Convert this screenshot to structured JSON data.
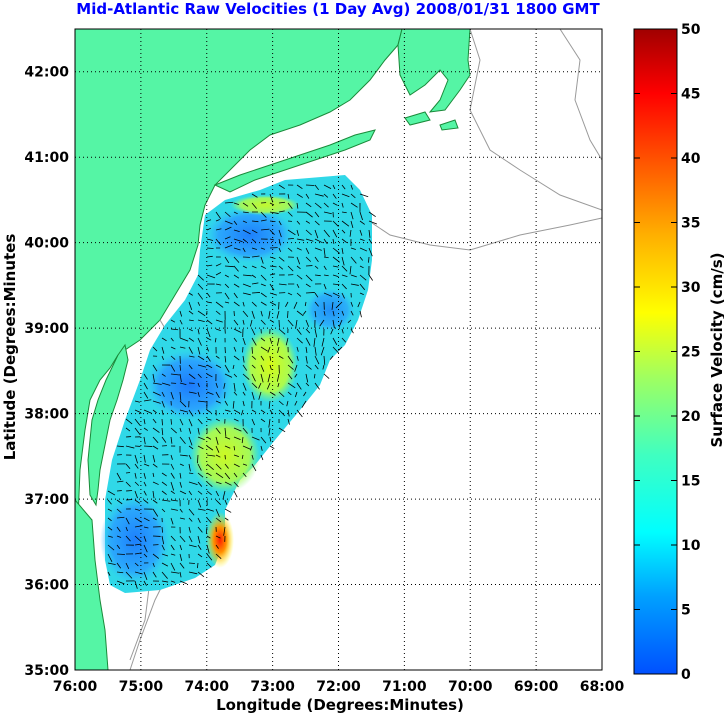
{
  "title": "Mid-Atlantic Raw Velocities (1 Day Avg) 2008/01/31 1800 GMT",
  "map": {
    "xlabel": "Longitude (Degrees:Minutes)",
    "ylabel": "Latitude (Degrees:Minutes",
    "lon_ticks": [
      "76:00",
      "75:00",
      "74:00",
      "73:00",
      "72:00",
      "71:00",
      "70:00",
      "69:00",
      "68:00"
    ],
    "lat_ticks": [
      "42:00",
      "41:00",
      "40:00",
      "39:00",
      "38:00",
      "37:00",
      "36:00",
      "35:00"
    ],
    "lon_range": [
      -76,
      -68
    ],
    "lat_range": [
      35,
      42.5
    ],
    "land_color": "#55f5a5",
    "coast_color": "#1a8a3a",
    "bathymetry_color": "#9a9a9a"
  },
  "colorbar": {
    "label": "Surface Velocity (cm/s)",
    "ticks": [
      "50",
      "45",
      "40",
      "35",
      "30",
      "25",
      "20",
      "15",
      "10",
      "5",
      "0"
    ],
    "min": 0,
    "max": 50
  }
}
